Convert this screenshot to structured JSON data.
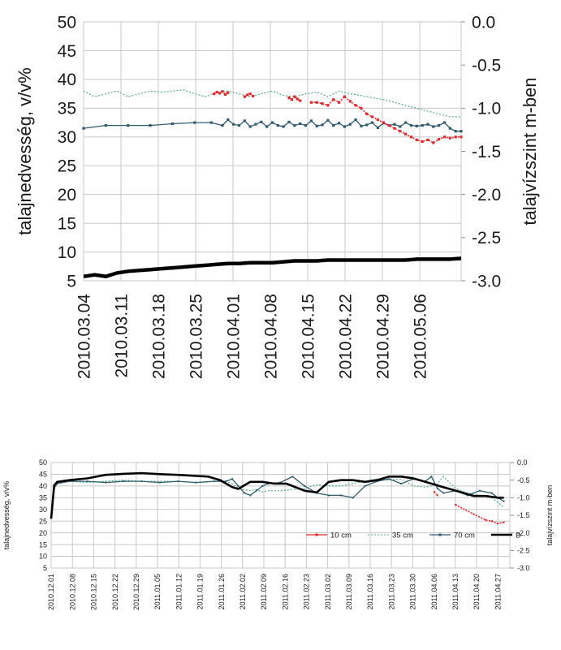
{
  "colors": {
    "s10": "#e8262b",
    "s35": "#4fae8a",
    "s70": "#2e5b6e",
    "B": "#000000",
    "grid": "#c8c8c8"
  },
  "chart_data": [
    {
      "type": "line",
      "ylabel": "talajnedvesség, v/v%",
      "ylabel_right": "talajvízszint m-ben",
      "ylim": [
        5,
        50
      ],
      "yticks": [
        "50",
        "45",
        "40",
        "35",
        "30",
        "25",
        "20",
        "15",
        "10",
        "5"
      ],
      "ylim_right": [
        -3.0,
        0.0
      ],
      "yticks_right": [
        "0.0",
        "-0.5",
        "-1.0",
        "-1.5",
        "-2.0",
        "-2.5",
        "-3.0"
      ],
      "xlim": [
        0,
        68
      ],
      "xticks": [
        "2010.03.04",
        "2010.03.11",
        "2010.03.18",
        "2010.03.25",
        "2010.04.01",
        "2010.04.08",
        "2010.04.15",
        "2010.04.22",
        "2010.04.29",
        "2010.05.06"
      ],
      "grid": true,
      "series": [
        {
          "key": "s35",
          "x": [
            0,
            2,
            4,
            6,
            8,
            10,
            12,
            14,
            16,
            18,
            20,
            22,
            24,
            26,
            28,
            30,
            32,
            34,
            36,
            38,
            40,
            42,
            44,
            46,
            48,
            50,
            52,
            54,
            56,
            58,
            60,
            62,
            64,
            66,
            68
          ],
          "values": [
            38,
            37,
            37.5,
            38,
            37,
            37.5,
            38,
            37.8,
            38,
            38.2,
            37.5,
            37,
            37.8,
            38,
            37.5,
            37,
            37.5,
            38,
            37.2,
            37,
            37.5,
            37.8,
            37,
            38,
            37.5,
            37.2,
            36.8,
            36.5,
            36,
            35.5,
            35,
            34.5,
            34,
            33.5,
            33.5
          ]
        },
        {
          "key": "s70",
          "x": [
            0,
            4,
            8,
            12,
            16,
            20,
            23,
            25,
            26,
            27,
            28,
            29,
            30,
            31,
            32,
            33,
            34,
            35,
            36,
            37,
            38,
            39,
            40,
            41,
            42,
            43,
            44,
            45,
            46,
            47,
            48,
            49,
            50,
            51,
            52,
            53,
            54,
            55,
            56,
            57,
            58,
            59,
            60,
            61,
            62,
            63,
            64,
            65,
            66,
            67,
            68
          ],
          "values": [
            31.5,
            32,
            32,
            32,
            32.3,
            32.5,
            32.5,
            32,
            33,
            32.2,
            32,
            32.8,
            31.8,
            32.2,
            32.6,
            31.8,
            32.5,
            32,
            31.8,
            32.6,
            32,
            32.3,
            32,
            32.8,
            31.9,
            32.1,
            32.9,
            32,
            32.4,
            31.8,
            32.2,
            33,
            31.9,
            32.1,
            32.5,
            31.6,
            32.4,
            32,
            32.2,
            31.8,
            32.5,
            32,
            31.9,
            32,
            32.2,
            31.8,
            32,
            32.5,
            31.5,
            31,
            31
          ]
        },
        {
          "key": "s10",
          "segments": [
            {
              "x": [
                23.5,
                24,
                24.5,
                25,
                25.5,
                26
              ],
              "values": [
                37.5,
                37.8,
                37.6,
                37.9,
                37.4,
                37.7
              ]
            },
            {
              "x": [
                29,
                29.5,
                30,
                30.5
              ],
              "values": [
                37,
                37.3,
                37.5,
                37.1
              ]
            },
            {
              "x": [
                37,
                37.5,
                38,
                38.5,
                39
              ],
              "values": [
                36.8,
                36.5,
                37,
                36.6,
                36.3
              ]
            },
            {
              "x": [
                41,
                42,
                43,
                44,
                45,
                46,
                47,
                48,
                49,
                50,
                51,
                52,
                53,
                54,
                55,
                56,
                57,
                58,
                59,
                60,
                61,
                62,
                63,
                64,
                65,
                66,
                67,
                68
              ],
              "values": [
                36,
                36,
                35.8,
                35.5,
                36.5,
                36,
                37,
                36.2,
                35.5,
                35,
                34,
                33.5,
                33,
                32.5,
                32,
                31.5,
                31,
                30.5,
                30,
                29.5,
                29.2,
                29.5,
                29,
                29.6,
                30,
                29.8,
                30,
                30
              ]
            }
          ]
        },
        {
          "key": "B",
          "axis": "right",
          "x": [
            0,
            2,
            4,
            6,
            8,
            10,
            12,
            14,
            16,
            18,
            20,
            22,
            24,
            26,
            28,
            30,
            32,
            34,
            36,
            38,
            40,
            42,
            44,
            46,
            48,
            50,
            52,
            54,
            56,
            58,
            60,
            62,
            64,
            66,
            68
          ],
          "values": [
            -2.95,
            -2.93,
            -2.95,
            -2.91,
            -2.89,
            -2.88,
            -2.87,
            -2.86,
            -2.85,
            -2.84,
            -2.83,
            -2.82,
            -2.81,
            -2.8,
            -2.8,
            -2.79,
            -2.79,
            -2.79,
            -2.78,
            -2.77,
            -2.77,
            -2.77,
            -2.76,
            -2.76,
            -2.76,
            -2.76,
            -2.76,
            -2.76,
            -2.76,
            -2.76,
            -2.75,
            -2.75,
            -2.75,
            -2.75,
            -2.74
          ]
        }
      ]
    },
    {
      "type": "line",
      "ylabel": "talajnedvesség, v/v%",
      "ylabel_right": "talajvízszint m-ben",
      "ylim": [
        5,
        50
      ],
      "yticks": [
        "50",
        "45",
        "40",
        "35",
        "30",
        "25",
        "20",
        "15",
        "10",
        "5"
      ],
      "ylim_right": [
        -3.0,
        0.0
      ],
      "yticks_right": [
        "0.0",
        "-0.5",
        "-1.0",
        "-1.5",
        "-2.0",
        "-2.5",
        "-3.0"
      ],
      "xlim": [
        0,
        152
      ],
      "xticks": [
        "2010.12.01",
        "2010.12.08",
        "2010.12.15",
        "2010.12.22",
        "2010.12.29",
        "2011.01.05",
        "2011.01.12",
        "2011.01.19",
        "2011.01.26",
        "2011.02.02",
        "2011.02.09",
        "2011.02.16",
        "2011.02.23",
        "2011.03.02",
        "2011.03.09",
        "2011.03.16",
        "2011.03.23",
        "2011.03.30",
        "2011.04.06",
        "2011.04.13",
        "2011.04.20",
        "2011.04.27"
      ],
      "grid": true,
      "legend": {
        "position": "bottom-right",
        "entries": [
          {
            "key": "s10",
            "label": "10 cm"
          },
          {
            "key": "s35",
            "label": "35 cm"
          },
          {
            "key": "s70",
            "label": "70 cm"
          },
          {
            "key": "B",
            "label": "B"
          }
        ]
      },
      "series": [
        {
          "key": "s35",
          "x": [
            0,
            1,
            2,
            6,
            12,
            18,
            24,
            30,
            36,
            42,
            48,
            54,
            58,
            60,
            62,
            64,
            66,
            68,
            70,
            72,
            76,
            80,
            84,
            88,
            92,
            96,
            100,
            104,
            108,
            112,
            116,
            120,
            124,
            126,
            128,
            130,
            134,
            138,
            142,
            146,
            148,
            150
          ],
          "values": [
            27,
            40,
            42,
            42,
            41.5,
            42,
            42.5,
            42,
            42,
            42,
            41.5,
            42,
            42,
            41,
            39,
            38.5,
            38,
            38.5,
            37.5,
            38,
            38,
            38.5,
            39,
            40.5,
            40,
            40,
            41,
            42,
            43,
            42.5,
            43,
            40,
            39.5,
            40,
            41,
            44,
            39,
            37,
            36,
            35,
            33,
            31
          ]
        },
        {
          "key": "s70",
          "x": [
            0,
            1,
            2,
            6,
            12,
            18,
            24,
            30,
            36,
            42,
            48,
            54,
            58,
            60,
            62,
            64,
            66,
            68,
            70,
            72,
            76,
            80,
            84,
            88,
            92,
            96,
            100,
            104,
            108,
            112,
            116,
            120,
            124,
            126,
            128,
            130,
            134,
            138,
            142,
            146,
            148,
            150
          ],
          "values": [
            27,
            39,
            41,
            42,
            42,
            41.5,
            42,
            42,
            41.5,
            42,
            41.5,
            42,
            42,
            43,
            40,
            37,
            36,
            38,
            40,
            41,
            41.5,
            44,
            40,
            37,
            36,
            36,
            35,
            40,
            42,
            43,
            41,
            43,
            42,
            44,
            39,
            37,
            38,
            36,
            38,
            37,
            35,
            33.5
          ]
        },
        {
          "key": "s10",
          "segments": [
            {
              "x": [
                127,
                128
              ],
              "values": [
                37.5,
                36
              ]
            },
            {
              "x": [
                134,
                140,
                144,
                146,
                148,
                150
              ],
              "values": [
                32,
                28,
                25.5,
                25,
                24,
                24.5
              ]
            }
          ]
        },
        {
          "key": "B",
          "axis": "right",
          "x": [
            0,
            1,
            2,
            6,
            12,
            18,
            24,
            30,
            36,
            42,
            48,
            52,
            56,
            58,
            60,
            62,
            66,
            70,
            74,
            78,
            84,
            88,
            92,
            96,
            100,
            104,
            108,
            112,
            116,
            120,
            124,
            128,
            132,
            136,
            140,
            144,
            148,
            150
          ],
          "values": [
            -1.6,
            -0.65,
            -0.55,
            -0.5,
            -0.45,
            -0.35,
            -0.32,
            -0.3,
            -0.33,
            -0.35,
            -0.38,
            -0.4,
            -0.5,
            -0.6,
            -0.7,
            -0.75,
            -0.55,
            -0.55,
            -0.6,
            -0.6,
            -0.8,
            -0.85,
            -0.55,
            -0.5,
            -0.5,
            -0.55,
            -0.5,
            -0.4,
            -0.4,
            -0.45,
            -0.55,
            -0.65,
            -0.75,
            -0.85,
            -0.95,
            -0.95,
            -1.0,
            -1.0
          ]
        }
      ]
    }
  ]
}
